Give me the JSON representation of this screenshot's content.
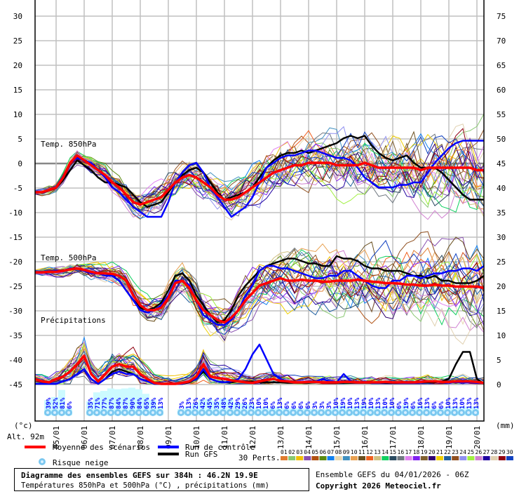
{
  "chart_data": {
    "type": "line",
    "title": "Diagramme des ensembles GEFS sur 384h : 46.2N 19.9E",
    "subtitle": "Températures 850hPa et 500hPa (°C) , précipitations (mm)",
    "run_info": "Ensemble GEFS du 04/01/2026 - 06Z",
    "copyright": "Copyright 2026 Meteociel.fr",
    "left_axis": {
      "unit": "(°c)",
      "ticks": [
        "30",
        "25",
        "20",
        "15",
        "10",
        "5",
        "0",
        "-5",
        "-10",
        "-15",
        "-20",
        "-25",
        "-30",
        "-35",
        "-40",
        "-45"
      ],
      "ylim": [
        -45,
        30
      ]
    },
    "right_axis": {
      "unit": "(mm)",
      "ticks": [
        "75",
        "70",
        "65",
        "60",
        "55",
        "50",
        "45",
        "40",
        "35",
        "30",
        "25",
        "20",
        "15",
        "10",
        "5",
        "0"
      ],
      "ylim": [
        0,
        75
      ]
    },
    "altitude": "Alt. 92m",
    "x_step_hours": 6,
    "x_labels": [
      "05/01",
      "06/01",
      "07/01",
      "08/01",
      "09/01",
      "10/01",
      "11/01",
      "12/01",
      "13/01",
      "14/01",
      "15/01",
      "16/01",
      "17/01",
      "18/01",
      "19/01",
      "20/01"
    ],
    "panel_labels": {
      "t850": "Temp. 850hPa",
      "t500": "Temp. 500hPa",
      "precip": "Précipitations"
    },
    "series": [
      {
        "name": "Moyenne des scénarios",
        "key": "mean",
        "color": "#ff0000",
        "t850": [
          -6,
          -6,
          -5.5,
          -5,
          -3,
          0,
          1.5,
          0.5,
          -0.5,
          -1.5,
          -2.5,
          -4,
          -5,
          -6.5,
          -8,
          -8.5,
          -8,
          -7.5,
          -7,
          -5.5,
          -4,
          -3,
          -2.5,
          -3,
          -4,
          -5,
          -6.5,
          -7.5,
          -7.5,
          -7,
          -6,
          -5,
          -4,
          -3,
          -2,
          -1.5,
          -1,
          -0.5,
          -0.5,
          0,
          0,
          0,
          0,
          -0.5,
          -0.5,
          -0.5,
          -0.5,
          0,
          -0.5,
          -1,
          -1,
          -1,
          -1,
          -1,
          -1,
          -1.5,
          -1,
          -1,
          -1,
          -1,
          -1,
          -1,
          -1,
          -1.5,
          -1.5
        ],
        "t500": [
          -22.3,
          -22.3,
          -22.2,
          -22.2,
          -22,
          -21.7,
          -21.5,
          -21.8,
          -22.2,
          -22.5,
          -22.5,
          -22.6,
          -23,
          -24,
          -27,
          -29,
          -30,
          -30,
          -29.5,
          -27.5,
          -24.5,
          -24,
          -25.5,
          -28,
          -30,
          -31,
          -32,
          -32.5,
          -31.5,
          -30,
          -28,
          -26.5,
          -25,
          -24.5,
          -24,
          -23.5,
          -24,
          -24,
          -23.8,
          -24,
          -24,
          -24.2,
          -24.2,
          -24,
          -24,
          -24,
          -23.8,
          -24,
          -24.2,
          -24.3,
          -24.5,
          -24.5,
          -24.6,
          -24.8,
          -24.8,
          -25,
          -25,
          -24.8,
          -25,
          -25,
          -25.2,
          -25.2,
          -25.2,
          -25.2,
          -25.5
        ],
        "precip": [
          1,
          0.5,
          0.3,
          1,
          1.5,
          2.5,
          4,
          5.7,
          2,
          0.5,
          2,
          3.5,
          4,
          3.5,
          3.5,
          2,
          1,
          0.2,
          0,
          0,
          0,
          0.2,
          0.5,
          1.5,
          4,
          1.5,
          1.2,
          1,
          0.7,
          0.5,
          0.3,
          0.2,
          0.5,
          0.8,
          1,
          0.6,
          0.5,
          0.3,
          0.3,
          0.4,
          0.4,
          0.3,
          0.3,
          0.3,
          0.4,
          0.4,
          0.3,
          0.3,
          0.3,
          0.3,
          0.4,
          0.3,
          0.3,
          0.3,
          0.3,
          0.4,
          0.5,
          0.5,
          0.4,
          0.4,
          0.5,
          0.5,
          0.5,
          0.4,
          0.2
        ]
      },
      {
        "name": "Run de contrôle",
        "key": "control",
        "color": "#0000ff",
        "t850": [
          -6,
          -6,
          -5.5,
          -5,
          -3,
          0,
          1,
          0.5,
          0,
          -1.5,
          -3,
          -5,
          -6,
          -7.5,
          -9,
          -10,
          -11,
          -11,
          -11,
          -8,
          -4,
          -2,
          -0.5,
          0,
          -2,
          -5,
          -7,
          -9,
          -11,
          -10,
          -9,
          -7,
          -4,
          -1,
          0,
          1,
          1.5,
          1.5,
          2,
          2.5,
          2.5,
          2,
          1.5,
          1,
          1,
          0.5,
          -1,
          -3,
          -4,
          -5,
          -5,
          -5,
          -4.5,
          -4.5,
          -4,
          -4,
          -2,
          0,
          1.5,
          3,
          4,
          4.5,
          4.5,
          4.5,
          4.5
        ],
        "t500": [
          -22.3,
          -22.3,
          -22.2,
          -22,
          -22,
          -21.5,
          -21.5,
          -22,
          -22.5,
          -22.5,
          -23,
          -23,
          -24,
          -26,
          -28,
          -30,
          -30.5,
          -30,
          -29,
          -27,
          -24,
          -24,
          -25,
          -28,
          -31,
          -32,
          -33,
          -33,
          -32,
          -30,
          -27,
          -25,
          -22,
          -21,
          -21,
          -21.5,
          -21.5,
          -22,
          -22.5,
          -23,
          -23.5,
          -23.5,
          -23,
          -23,
          -22,
          -22,
          -23,
          -24,
          -25,
          -25.5,
          -25.5,
          -24,
          -24,
          -23,
          -23,
          -23.5,
          -23,
          -22.5,
          -22.5,
          -22,
          -22,
          -21.5,
          -21.5,
          -22,
          -21
        ],
        "precip": [
          0,
          0,
          0,
          0,
          0.5,
          1,
          2,
          3,
          1,
          0,
          1,
          2,
          2.5,
          2,
          2,
          1,
          0.5,
          0,
          0,
          0,
          0,
          0,
          0.5,
          1,
          3,
          1,
          0.5,
          0.3,
          0.5,
          1,
          3,
          6,
          8,
          5,
          2,
          1,
          0.5,
          0.3,
          0.3,
          0.5,
          0.5,
          1,
          0.5,
          0.3,
          2,
          0.5,
          0.3,
          0.5,
          0.2,
          0.2,
          0.3,
          0.3,
          0.2,
          0.2,
          0.2,
          0.3,
          0.5,
          0.5,
          0.3,
          0.3,
          0.3,
          0.3,
          0.3,
          0.2,
          0.2
        ]
      },
      {
        "name": "Run GFS",
        "key": "gfs",
        "color": "#000000",
        "t850": [
          -6,
          -6,
          -5.5,
          -5,
          -3.5,
          -1.5,
          0.5,
          -0.5,
          -1.5,
          -3,
          -4,
          -4,
          -4.5,
          -5,
          -6.5,
          -8,
          -9,
          -8.5,
          -8,
          -6,
          -4,
          -2.5,
          -1.5,
          -1,
          -2,
          -4,
          -6,
          -7.5,
          -7,
          -6.5,
          -6,
          -5,
          -3,
          -1,
          0.5,
          1.5,
          2,
          2,
          2.5,
          2,
          2.5,
          3,
          3.5,
          4,
          5,
          5.5,
          5,
          5.5,
          3.5,
          2,
          1,
          0.5,
          1,
          1.5,
          0,
          -1,
          -1,
          -1,
          -2,
          -3.5,
          -5,
          -6.5,
          -7.5,
          -7.5,
          -7.5
        ],
        "t500": [
          -22.3,
          -22.3,
          -22.2,
          -22.2,
          -22,
          -21.5,
          -21.5,
          -22,
          -22.3,
          -22.5,
          -22.5,
          -23,
          -24,
          -26,
          -28,
          -29.5,
          -30,
          -29.5,
          -28.5,
          -26,
          -23,
          -22.5,
          -24,
          -27,
          -29,
          -31,
          -32.5,
          -32,
          -30,
          -27,
          -25,
          -23.5,
          -22,
          -21,
          -20.5,
          -20,
          -19.5,
          -19.5,
          -20,
          -20.5,
          -20.5,
          -21,
          -21,
          -19,
          -19.5,
          -19.5,
          -20,
          -21,
          -21.5,
          -21.5,
          -22,
          -22,
          -22,
          -22.5,
          -23,
          -23,
          -23.5,
          -23,
          -24,
          -24,
          -24.5,
          -24.5,
          -24.5,
          -24,
          -23
        ],
        "precip": [
          0,
          0,
          0,
          0,
          0.5,
          1,
          2,
          3,
          1,
          0,
          1,
          2.5,
          3,
          2.5,
          2,
          1,
          0.5,
          0,
          0,
          0,
          0,
          0,
          0.3,
          1,
          2.5,
          1,
          0.5,
          0.3,
          0.3,
          0.5,
          0.5,
          0.5,
          0.3,
          0.3,
          0.3,
          0.3,
          0.2,
          0.2,
          0.2,
          0.2,
          0.3,
          0.3,
          0.2,
          0.2,
          0.2,
          0.2,
          0.2,
          0.2,
          0.2,
          0.2,
          0.2,
          0.2,
          0.2,
          0.3,
          0.3,
          0.3,
          0.3,
          0.3,
          0.5,
          1,
          4,
          6.5,
          6.5,
          1,
          0
        ]
      }
    ],
    "perturbations": {
      "label": "30 Perts.",
      "ids": [
        "01",
        "02",
        "03",
        "04",
        "05",
        "06",
        "07",
        "08",
        "09",
        "10",
        "11",
        "12",
        "13",
        "14",
        "15",
        "16",
        "17",
        "18",
        "19",
        "20",
        "21",
        "22",
        "23",
        "24",
        "25",
        "26",
        "27",
        "28",
        "29",
        "30"
      ],
      "colors": [
        "#e07c30",
        "#88c870",
        "#f0c000",
        "#8850b0",
        "#b05010",
        "#5a8a10",
        "#1080f0",
        "#e8d8b0",
        "#4090c0",
        "#e8a050",
        "#6a5020",
        "#f06020",
        "#d0c080",
        "#10d060",
        "#2a4a60",
        "#707880",
        "#e080f0",
        "#8020f0",
        "#806030",
        "#300070",
        "#f0d000",
        "#2060a0",
        "#905020",
        "#9090f0",
        "#a0f040",
        "#d080d0",
        "#2000a0",
        "#e0d0b0",
        "#900010",
        "#1040c0"
      ]
    },
    "snow_risk": {
      "label": "Risque neige",
      "values_pct": [
        null,
        39,
        52,
        81,
        6,
        null,
        null,
        35,
        71,
        77,
        87,
        84,
        87,
        90,
        84,
        65,
        39,
        13,
        null,
        null,
        3,
        13,
        26,
        42,
        45,
        35,
        48,
        42,
        29,
        26,
        23,
        10,
        10,
        6,
        13,
        6,
        6,
        6,
        6,
        3,
        3,
        3,
        10,
        19,
        10,
        13,
        19,
        10,
        13,
        10,
        10,
        6,
        19,
        6,
        16,
        13,
        6,
        6,
        10,
        13,
        10,
        13,
        13,
        null
      ]
    }
  }
}
